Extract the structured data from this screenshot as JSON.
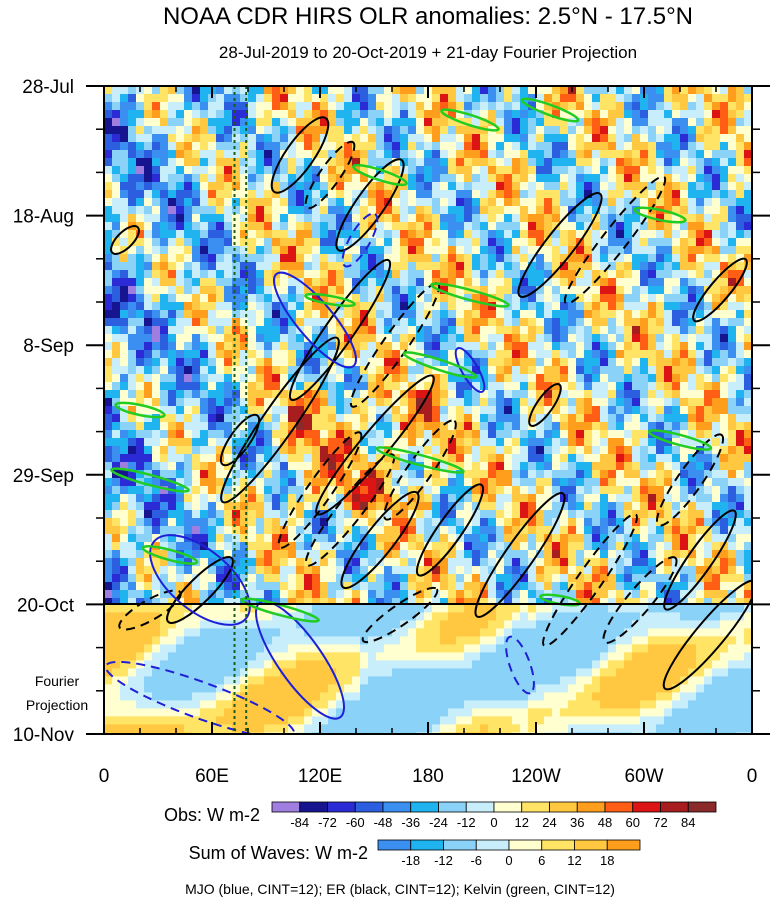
{
  "chart_data": {
    "type": "heatmap",
    "title": "NOAA CDR HIRS OLR anomalies: 2.5°N - 17.5°N",
    "subtitle": "28-Jul-2019 to 20-Oct-2019 + 21-day Fourier Projection",
    "x_ticks": [
      "0",
      "60E",
      "120E",
      "180",
      "120W",
      "60W",
      "0"
    ],
    "x_tick_values": [
      0,
      60,
      120,
      180,
      240,
      300,
      360
    ],
    "xlim": [
      0,
      360
    ],
    "y_ticks": [
      "28-Jul",
      "18-Aug",
      "8-Sep",
      "29-Sep",
      "20-Oct",
      "10-Nov"
    ],
    "y_tick_values": [
      0,
      21,
      42,
      63,
      84,
      105
    ],
    "ylim": [
      0,
      105
    ],
    "projection_start_label": "20-Oct",
    "projection_start": 84,
    "projection_label_lines": [
      "Fourier",
      "Projection"
    ],
    "reference_lines_lon": [
      72.5,
      79
    ],
    "obs_legend": {
      "label": "Obs: W m-2",
      "levels": [
        "-84",
        "-72",
        "-60",
        "-48",
        "-36",
        "-24",
        "-12",
        "0",
        "12",
        "24",
        "36",
        "48",
        "60",
        "72",
        "84"
      ],
      "colors": [
        "#a07ee0",
        "#16158f",
        "#2b2bd6",
        "#2b5fe0",
        "#3b8ff0",
        "#1fb4f0",
        "#8ad2f8",
        "#c8eefc",
        "#ffffd0",
        "#ffe466",
        "#ffc840",
        "#ff9e1c",
        "#ff5e14",
        "#dd1414",
        "#a81e1e",
        "#8b2a2a"
      ]
    },
    "waves_legend": {
      "label": "Sum of Waves: W m-2",
      "levels": [
        "-18",
        "-12",
        "-6",
        "0",
        "6",
        "12",
        "18"
      ],
      "colors": [
        "#3b8ff0",
        "#1fb4f0",
        "#8ad2f8",
        "#c8eefc",
        "#ffffd0",
        "#ffe466",
        "#ffc840",
        "#ff9e1c"
      ]
    },
    "footer": "MJO (blue, CINT=12); ER (black, CINT=12); Kelvin (green, CINT=12)",
    "series": [
      {
        "name": "MJO",
        "color": "#1f1fd8"
      },
      {
        "name": "ER",
        "color": "#000000"
      },
      {
        "name": "Kelvin",
        "color": "#22cc22"
      }
    ]
  }
}
